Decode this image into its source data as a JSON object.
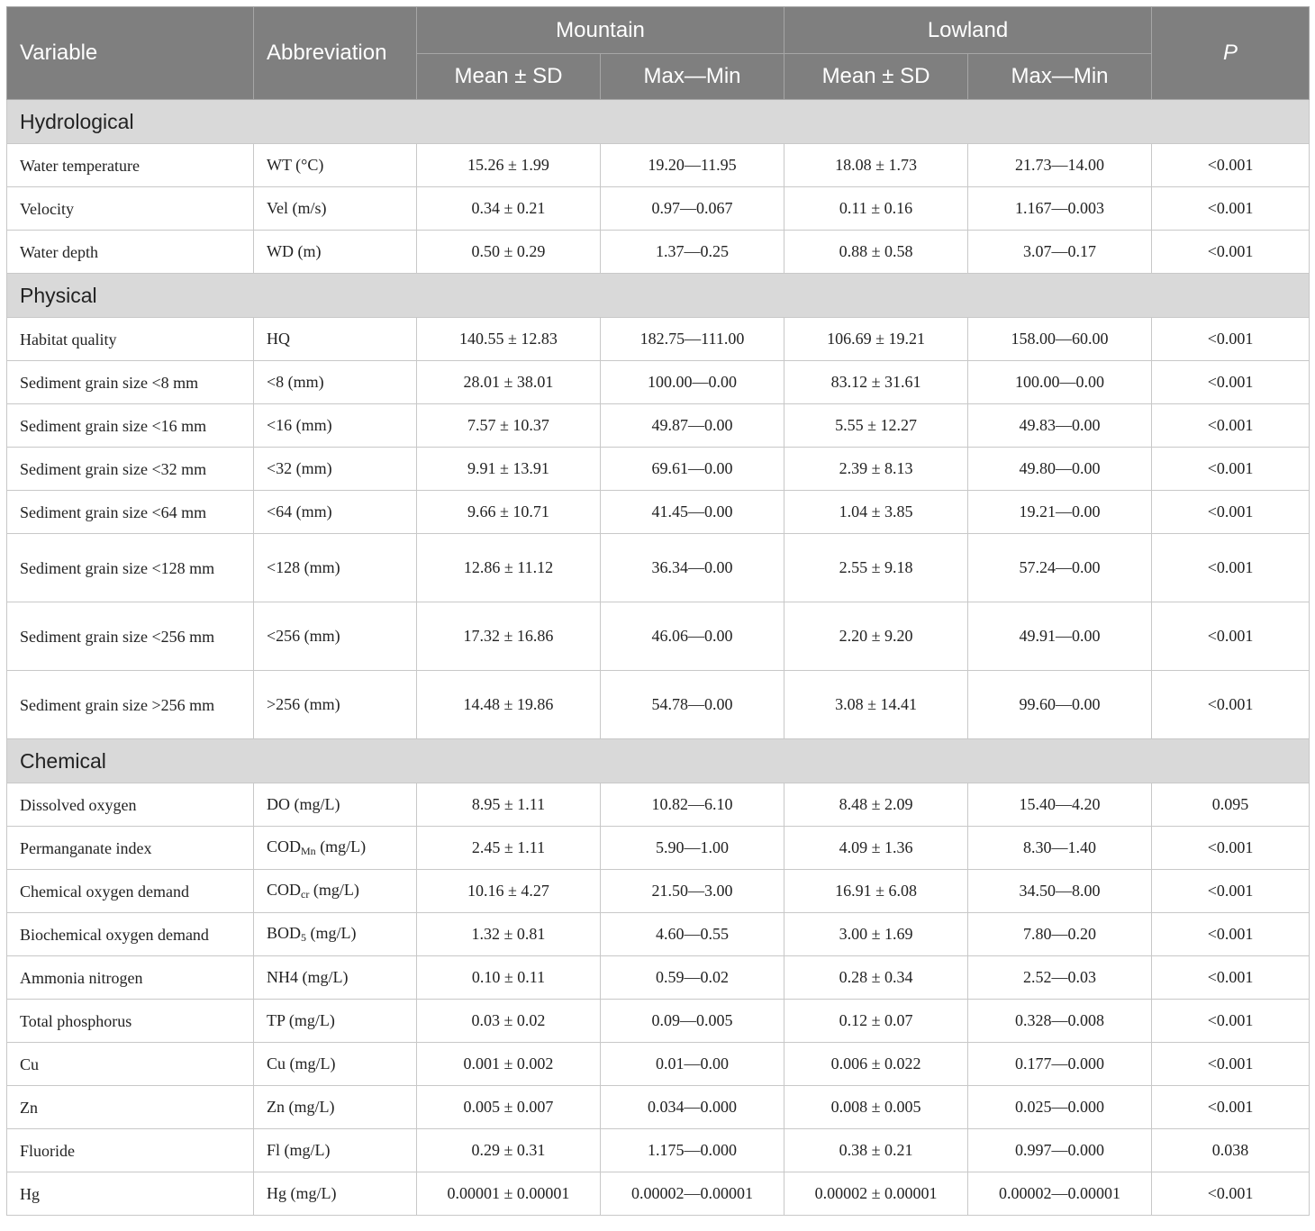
{
  "header": {
    "variable": "Variable",
    "abbreviation": "Abbreviation",
    "mountain": "Mountain",
    "lowland": "Lowland",
    "p": "P",
    "mean_sd": "Mean ± SD",
    "max_min": "Max—Min"
  },
  "sections": [
    {
      "title": "Hydrological",
      "rows": [
        {
          "variable": "Water temperature",
          "abbr": "WT (°C)",
          "m_mean": "15.26 ± 1.99",
          "m_range": "19.20—11.95",
          "l_mean": "18.08 ± 1.73",
          "l_range": "21.73—14.00",
          "p": "<0.001"
        },
        {
          "variable": "Velocity",
          "abbr": "Vel (m/s)",
          "m_mean": "0.34 ± 0.21",
          "m_range": "0.97—0.067",
          "l_mean": "0.11 ± 0.16",
          "l_range": "1.167—0.003",
          "p": "<0.001"
        },
        {
          "variable": "Water depth",
          "abbr": "WD (m)",
          "m_mean": "0.50 ± 0.29",
          "m_range": "1.37—0.25",
          "l_mean": "0.88 ± 0.58",
          "l_range": "3.07—0.17",
          "p": "<0.001"
        }
      ]
    },
    {
      "title": "Physical",
      "rows": [
        {
          "variable": "Habitat quality",
          "abbr": "HQ",
          "m_mean": "140.55 ± 12.83",
          "m_range": "182.75—111.00",
          "l_mean": "106.69 ± 19.21",
          "l_range": "158.00—60.00",
          "p": "<0.001"
        },
        {
          "variable": "Sediment grain size <8 mm",
          "abbr": "<8 (mm)",
          "m_mean": "28.01 ± 38.01",
          "m_range": "100.00—0.00",
          "l_mean": "83.12 ± 31.61",
          "l_range": "100.00—0.00",
          "p": "<0.001"
        },
        {
          "variable": "Sediment grain size <16 mm",
          "abbr": "<16 (mm)",
          "m_mean": "7.57 ± 10.37",
          "m_range": "49.87—0.00",
          "l_mean": "5.55 ± 12.27",
          "l_range": "49.83—0.00",
          "p": "<0.001"
        },
        {
          "variable": "Sediment grain size <32 mm",
          "abbr": "<32 (mm)",
          "m_mean": "9.91 ± 13.91",
          "m_range": "69.61—0.00",
          "l_mean": "2.39 ± 8.13",
          "l_range": "49.80—0.00",
          "p": "<0.001"
        },
        {
          "variable": "Sediment grain size <64 mm",
          "abbr": "<64 (mm)",
          "m_mean": "9.66 ± 10.71",
          "m_range": "41.45—0.00",
          "l_mean": "1.04 ± 3.85",
          "l_range": "19.21—0.00",
          "p": "<0.001"
        },
        {
          "variable": "Sediment grain size <128 mm",
          "abbr": "<128 (mm)",
          "m_mean": "12.86 ± 11.12",
          "m_range": "36.34—0.00",
          "l_mean": "2.55 ± 9.18",
          "l_range": "57.24—0.00",
          "p": "<0.001"
        },
        {
          "variable": "Sediment grain size <256 mm",
          "abbr": "<256 (mm)",
          "m_mean": "17.32 ± 16.86",
          "m_range": "46.06—0.00",
          "l_mean": "2.20 ± 9.20",
          "l_range": "49.91—0.00",
          "p": "<0.001"
        },
        {
          "variable": "Sediment grain size >256 mm",
          "abbr": ">256 (mm)",
          "m_mean": "14.48 ± 19.86",
          "m_range": "54.78—0.00",
          "l_mean": "3.08 ± 14.41",
          "l_range": "99.60—0.00",
          "p": "<0.001"
        }
      ]
    },
    {
      "title": "Chemical",
      "rows": [
        {
          "variable": "Dissolved oxygen",
          "abbr": "DO (mg/L)",
          "m_mean": "8.95 ± 1.11",
          "m_range": "10.82—6.10",
          "l_mean": "8.48 ± 2.09",
          "l_range": "15.40—4.20",
          "p": "0.095"
        },
        {
          "variable": "Permanganate index",
          "abbr_main": "COD",
          "abbr_sub": "Mn",
          "abbr_unit": " (mg/L)",
          "m_mean": "2.45 ± 1.11",
          "m_range": "5.90—1.00",
          "l_mean": "4.09 ± 1.36",
          "l_range": "8.30—1.40",
          "p": "<0.001"
        },
        {
          "variable": "Chemical oxygen demand",
          "abbr_main": "COD",
          "abbr_sub": "cr",
          "abbr_unit": " (mg/L)",
          "m_mean": "10.16 ± 4.27",
          "m_range": "21.50—3.00",
          "l_mean": "16.91 ± 6.08",
          "l_range": "34.50—8.00",
          "p": "<0.001"
        },
        {
          "variable": "Biochemical oxygen demand",
          "abbr_main": "BOD",
          "abbr_sub": "5",
          "abbr_unit": " (mg/L)",
          "m_mean": "1.32 ± 0.81",
          "m_range": "4.60—0.55",
          "l_mean": "3.00 ± 1.69",
          "l_range": "7.80—0.20",
          "p": "<0.001"
        },
        {
          "variable": "Ammonia nitrogen",
          "abbr": "NH4 (mg/L)",
          "m_mean": "0.10 ± 0.11",
          "m_range": "0.59—0.02",
          "l_mean": "0.28 ± 0.34",
          "l_range": "2.52—0.03",
          "p": "<0.001"
        },
        {
          "variable": "Total phosphorus",
          "abbr": "TP (mg/L)",
          "m_mean": "0.03 ± 0.02",
          "m_range": "0.09—0.005",
          "l_mean": "0.12 ± 0.07",
          "l_range": "0.328—0.008",
          "p": "<0.001"
        },
        {
          "variable": "Cu",
          "abbr": "Cu (mg/L)",
          "m_mean": "0.001 ± 0.002",
          "m_range": "0.01—0.00",
          "l_mean": "0.006 ± 0.022",
          "l_range": "0.177—0.000",
          "p": "<0.001"
        },
        {
          "variable": "Zn",
          "abbr": "Zn (mg/L)",
          "m_mean": "0.005 ± 0.007",
          "m_range": "0.034—0.000",
          "l_mean": "0.008 ± 0.005",
          "l_range": "0.025—0.000",
          "p": "<0.001"
        },
        {
          "variable": "Fluoride",
          "abbr": "Fl (mg/L)",
          "m_mean": "0.29 ± 0.31",
          "m_range": "1.175—0.000",
          "l_mean": "0.38 ± 0.21",
          "l_range": "0.997—0.000",
          "p": "0.038"
        },
        {
          "variable": "Hg",
          "abbr": "Hg (mg/L)",
          "m_mean": "0.00001 ± 0.00001",
          "m_range": "0.00002—0.00001",
          "l_mean": "0.00002 ± 0.00001",
          "l_range": "0.00002—0.00001",
          "p": "<0.001"
        }
      ]
    }
  ]
}
